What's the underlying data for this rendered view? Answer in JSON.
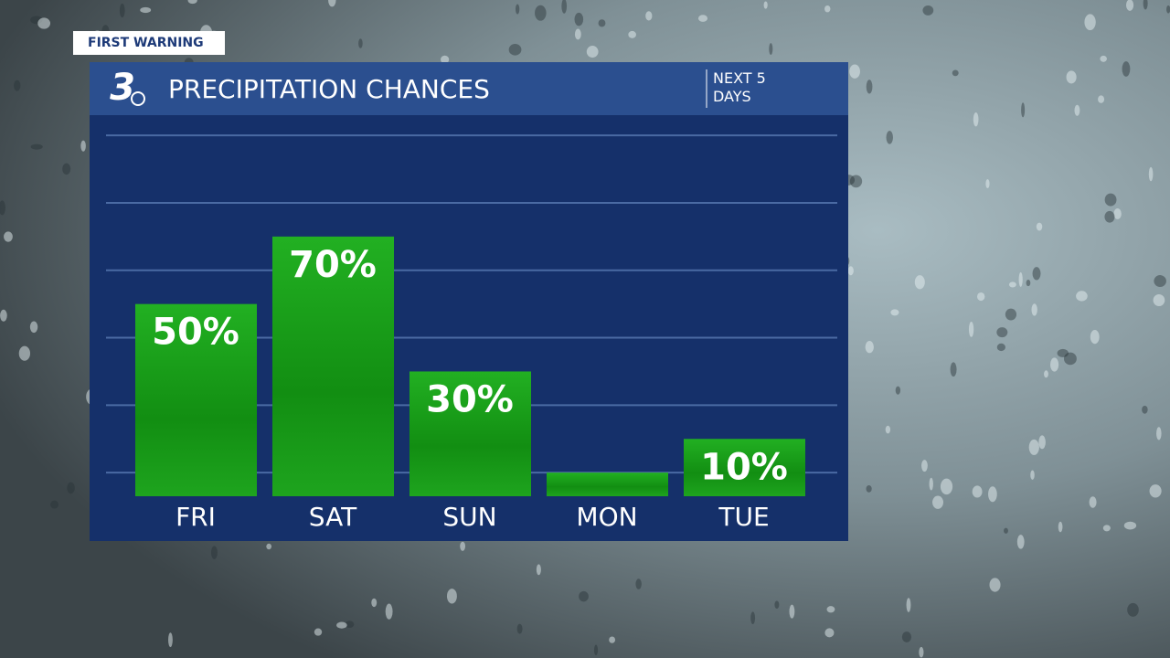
{
  "brand": {
    "tag": "FIRST WARNING",
    "logo": "3"
  },
  "chart_data": {
    "type": "bar",
    "title": "PRECIPITATION CHANCES",
    "subtitle": "NEXT 5 DAYS",
    "categories": [
      "FRI",
      "SAT",
      "SUN",
      "MON",
      "TUE"
    ],
    "values": [
      50,
      70,
      30,
      0,
      10
    ],
    "value_labels": [
      "50%",
      "70%",
      "30%",
      null,
      "10%"
    ],
    "color": "#17a117",
    "ylim": [
      -7,
      106
    ],
    "yticks": [
      0,
      20,
      40,
      60,
      80,
      100
    ],
    "grid": true
  }
}
